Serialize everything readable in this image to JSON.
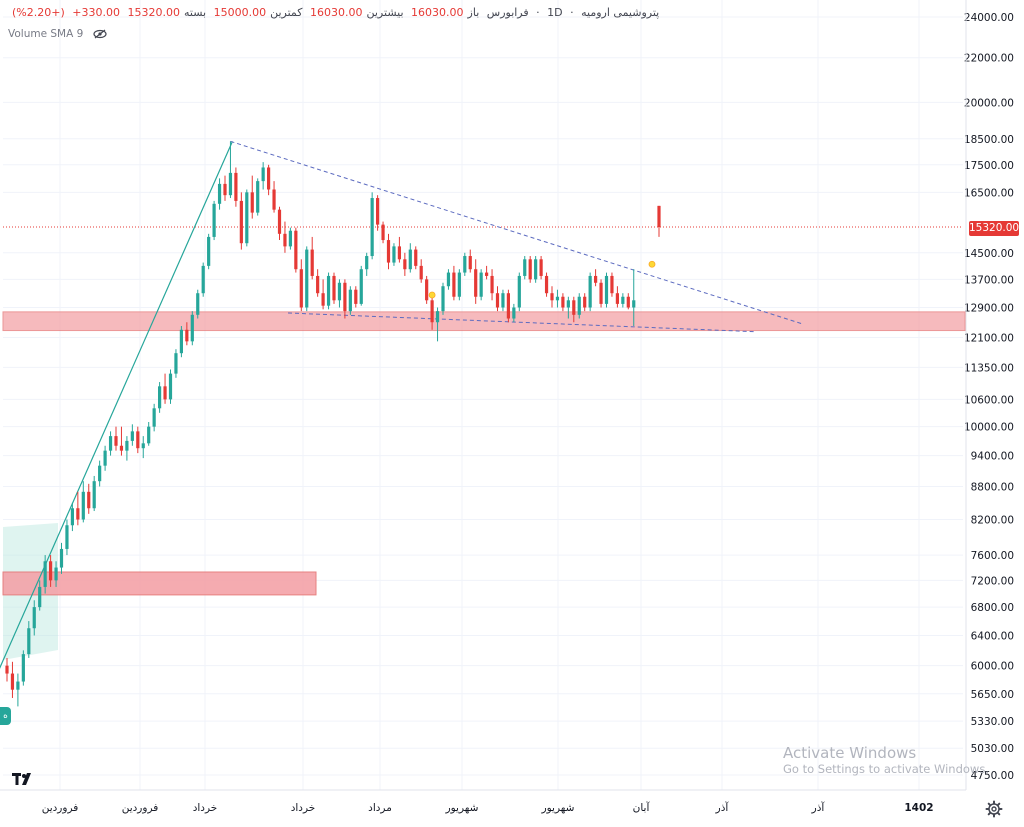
{
  "header": {
    "symbol": "پتروشیمی ارومیه",
    "interval": "1D",
    "exchange": "فرابورس",
    "open_label": "باز",
    "open_value": "16030.00",
    "high_label": "بیشترین",
    "high_value": "16030.00",
    "low_label": "کمترین",
    "low_value": "15000.00",
    "close_label": "بسته",
    "close_value": "15320.00",
    "change": "330.00+",
    "change_pct": "(+2.20%)"
  },
  "volume_indicator": {
    "label": "Volume SMA 9"
  },
  "price_axis": {
    "ticks": [
      "24000.00",
      "22000.00",
      "20000.00",
      "18500.00",
      "17500.00",
      "16500.00",
      "14500.00",
      "13700.00",
      "12900.00",
      "12100.00",
      "11350.00",
      "10600.00",
      "10000.00",
      "9400.00",
      "8800.00",
      "8200.00",
      "7600.00",
      "7200.00",
      "6800.00",
      "6400.00",
      "6000.00",
      "5650.00",
      "5330.00",
      "5030.00",
      "4750.00"
    ],
    "last_price": "15320.00"
  },
  "time_axis": {
    "labels": [
      "فروردین",
      "فروردین",
      "خرداد",
      "خرداد",
      "مرداد",
      "شهریور",
      "شهریور",
      "آبان",
      "آذر",
      "آذر",
      "1402"
    ]
  },
  "watermark": {
    "line1": "Activate Windows",
    "line2": "Go to Settings to activate Windows."
  },
  "colors": {
    "up": "#26a69a",
    "down": "#e53935",
    "zone": "#f4a3a8",
    "trend": "#26a69a",
    "dashed": "#5c6bc0",
    "grid": "#f0f3fa"
  },
  "chart_data": {
    "type": "candlestick",
    "scale": "log",
    "ylim": [
      4700,
      25000
    ],
    "candles": [
      {
        "o": 6000,
        "h": 6100,
        "l": 5800,
        "c": 5900
      },
      {
        "o": 5900,
        "h": 6050,
        "l": 5600,
        "c": 5700
      },
      {
        "o": 5700,
        "h": 5900,
        "l": 5500,
        "c": 5800
      },
      {
        "o": 5800,
        "h": 6200,
        "l": 5750,
        "c": 6150
      },
      {
        "o": 6150,
        "h": 6600,
        "l": 6100,
        "c": 6500
      },
      {
        "o": 6500,
        "h": 6900,
        "l": 6400,
        "c": 6800
      },
      {
        "o": 6800,
        "h": 7200,
        "l": 6750,
        "c": 7100
      },
      {
        "o": 7100,
        "h": 7600,
        "l": 7000,
        "c": 7500
      },
      {
        "o": 7500,
        "h": 7600,
        "l": 7100,
        "c": 7200
      },
      {
        "o": 7200,
        "h": 7500,
        "l": 7100,
        "c": 7400
      },
      {
        "o": 7400,
        "h": 7800,
        "l": 7300,
        "c": 7700
      },
      {
        "o": 7700,
        "h": 8200,
        "l": 7600,
        "c": 8100
      },
      {
        "o": 8100,
        "h": 8500,
        "l": 8000,
        "c": 8400
      },
      {
        "o": 8400,
        "h": 8700,
        "l": 8100,
        "c": 8200
      },
      {
        "o": 8200,
        "h": 8900,
        "l": 8150,
        "c": 8700
      },
      {
        "o": 8700,
        "h": 8850,
        "l": 8300,
        "c": 8400
      },
      {
        "o": 8400,
        "h": 9000,
        "l": 8350,
        "c": 8900
      },
      {
        "o": 8900,
        "h": 9300,
        "l": 8800,
        "c": 9200
      },
      {
        "o": 9200,
        "h": 9600,
        "l": 9100,
        "c": 9500
      },
      {
        "o": 9500,
        "h": 9900,
        "l": 9400,
        "c": 9800
      },
      {
        "o": 9800,
        "h": 10000,
        "l": 9500,
        "c": 9600
      },
      {
        "o": 9600,
        "h": 10000,
        "l": 9400,
        "c": 9500
      },
      {
        "o": 9500,
        "h": 9800,
        "l": 9300,
        "c": 9700
      },
      {
        "o": 9700,
        "h": 10050,
        "l": 9600,
        "c": 9900
      },
      {
        "o": 9900,
        "h": 10000,
        "l": 9450,
        "c": 9550
      },
      {
        "o": 9550,
        "h": 9800,
        "l": 9350,
        "c": 9650
      },
      {
        "o": 9650,
        "h": 10100,
        "l": 9600,
        "c": 10000
      },
      {
        "o": 10000,
        "h": 10500,
        "l": 9900,
        "c": 10400
      },
      {
        "o": 10400,
        "h": 11000,
        "l": 10300,
        "c": 10900
      },
      {
        "o": 10900,
        "h": 11200,
        "l": 10500,
        "c": 10600
      },
      {
        "o": 10600,
        "h": 11300,
        "l": 10500,
        "c": 11200
      },
      {
        "o": 11200,
        "h": 11800,
        "l": 11100,
        "c": 11700
      },
      {
        "o": 11700,
        "h": 12400,
        "l": 11600,
        "c": 12300
      },
      {
        "o": 12300,
        "h": 12500,
        "l": 11900,
        "c": 12000
      },
      {
        "o": 12000,
        "h": 12800,
        "l": 11900,
        "c": 12700
      },
      {
        "o": 12700,
        "h": 13400,
        "l": 12600,
        "c": 13300
      },
      {
        "o": 13300,
        "h": 14200,
        "l": 13200,
        "c": 14100
      },
      {
        "o": 14100,
        "h": 15100,
        "l": 14000,
        "c": 15000
      },
      {
        "o": 15000,
        "h": 16200,
        "l": 14900,
        "c": 16100
      },
      {
        "o": 16100,
        "h": 17000,
        "l": 15900,
        "c": 16800
      },
      {
        "o": 16800,
        "h": 17100,
        "l": 16200,
        "c": 16400
      },
      {
        "o": 16400,
        "h": 18400,
        "l": 16300,
        "c": 17200
      },
      {
        "o": 17200,
        "h": 17400,
        "l": 16000,
        "c": 16200
      },
      {
        "o": 16200,
        "h": 16500,
        "l": 14600,
        "c": 14800
      },
      {
        "o": 14800,
        "h": 16600,
        "l": 14700,
        "c": 16500
      },
      {
        "o": 16500,
        "h": 17100,
        "l": 15600,
        "c": 15800
      },
      {
        "o": 15800,
        "h": 17000,
        "l": 15700,
        "c": 16900
      },
      {
        "o": 16900,
        "h": 17600,
        "l": 16600,
        "c": 17400
      },
      {
        "o": 17400,
        "h": 17500,
        "l": 16400,
        "c": 16600
      },
      {
        "o": 16600,
        "h": 16900,
        "l": 15800,
        "c": 15900
      },
      {
        "o": 15900,
        "h": 16000,
        "l": 14900,
        "c": 15100
      },
      {
        "o": 15100,
        "h": 15500,
        "l": 14500,
        "c": 14700
      },
      {
        "o": 14700,
        "h": 15300,
        "l": 14600,
        "c": 15200
      },
      {
        "o": 15200,
        "h": 15300,
        "l": 13900,
        "c": 14000
      },
      {
        "o": 14000,
        "h": 14300,
        "l": 12800,
        "c": 12900
      },
      {
        "o": 12900,
        "h": 14700,
        "l": 12800,
        "c": 14600
      },
      {
        "o": 14600,
        "h": 15000,
        "l": 13700,
        "c": 13800
      },
      {
        "o": 13800,
        "h": 14000,
        "l": 13200,
        "c": 13300
      },
      {
        "o": 13300,
        "h": 13700,
        "l": 12850,
        "c": 12950
      },
      {
        "o": 12950,
        "h": 13900,
        "l": 12850,
        "c": 13800
      },
      {
        "o": 13800,
        "h": 13900,
        "l": 13000,
        "c": 13100
      },
      {
        "o": 13100,
        "h": 13700,
        "l": 12900,
        "c": 13600
      },
      {
        "o": 13600,
        "h": 13700,
        "l": 12600,
        "c": 12800
      },
      {
        "o": 12800,
        "h": 13500,
        "l": 12700,
        "c": 13400
      },
      {
        "o": 13400,
        "h": 13500,
        "l": 12900,
        "c": 13000
      },
      {
        "o": 13000,
        "h": 14100,
        "l": 12950,
        "c": 14000
      },
      {
        "o": 14000,
        "h": 14500,
        "l": 13800,
        "c": 14400
      },
      {
        "o": 14400,
        "h": 16500,
        "l": 14300,
        "c": 16300
      },
      {
        "o": 16300,
        "h": 16400,
        "l": 15200,
        "c": 15400
      },
      {
        "o": 15400,
        "h": 15500,
        "l": 14800,
        "c": 14900
      },
      {
        "o": 14900,
        "h": 15100,
        "l": 14000,
        "c": 14200
      },
      {
        "o": 14200,
        "h": 14800,
        "l": 14100,
        "c": 14700
      },
      {
        "o": 14700,
        "h": 15000,
        "l": 14200,
        "c": 14300
      },
      {
        "o": 14300,
        "h": 14500,
        "l": 13800,
        "c": 14000
      },
      {
        "o": 14000,
        "h": 14800,
        "l": 13900,
        "c": 14600
      },
      {
        "o": 14600,
        "h": 14700,
        "l": 14000,
        "c": 14100
      },
      {
        "o": 14100,
        "h": 14300,
        "l": 13600,
        "c": 13700
      },
      {
        "o": 13700,
        "h": 13800,
        "l": 13000,
        "c": 13100
      },
      {
        "o": 13100,
        "h": 13300,
        "l": 12300,
        "c": 12500
      },
      {
        "o": 12500,
        "h": 12900,
        "l": 12000,
        "c": 12800
      },
      {
        "o": 12800,
        "h": 13600,
        "l": 12700,
        "c": 13500
      },
      {
        "o": 13500,
        "h": 14000,
        "l": 13400,
        "c": 13900
      },
      {
        "o": 13900,
        "h": 14100,
        "l": 13100,
        "c": 13200
      },
      {
        "o": 13200,
        "h": 14000,
        "l": 13100,
        "c": 13900
      },
      {
        "o": 13900,
        "h": 14500,
        "l": 13800,
        "c": 14400
      },
      {
        "o": 14400,
        "h": 14600,
        "l": 13900,
        "c": 14000
      },
      {
        "o": 14000,
        "h": 14300,
        "l": 13000,
        "c": 13200
      },
      {
        "o": 13200,
        "h": 14000,
        "l": 13100,
        "c": 13900
      },
      {
        "o": 13900,
        "h": 14100,
        "l": 13700,
        "c": 13800
      },
      {
        "o": 13800,
        "h": 14000,
        "l": 13100,
        "c": 13300
      },
      {
        "o": 13300,
        "h": 13500,
        "l": 12800,
        "c": 12900
      },
      {
        "o": 12900,
        "h": 13400,
        "l": 12800,
        "c": 13300
      },
      {
        "o": 13300,
        "h": 13400,
        "l": 12500,
        "c": 12600
      },
      {
        "o": 12600,
        "h": 13000,
        "l": 12500,
        "c": 12900
      },
      {
        "o": 12900,
        "h": 13900,
        "l": 12800,
        "c": 13800
      },
      {
        "o": 13800,
        "h": 14400,
        "l": 13700,
        "c": 14300
      },
      {
        "o": 14300,
        "h": 14400,
        "l": 13600,
        "c": 13700
      },
      {
        "o": 13700,
        "h": 14400,
        "l": 13600,
        "c": 14300
      },
      {
        "o": 14300,
        "h": 14400,
        "l": 13700,
        "c": 13800
      },
      {
        "o": 13800,
        "h": 13900,
        "l": 13200,
        "c": 13300
      },
      {
        "o": 13300,
        "h": 13500,
        "l": 12900,
        "c": 13100
      },
      {
        "o": 13100,
        "h": 13400,
        "l": 12900,
        "c": 13200
      },
      {
        "o": 13200,
        "h": 13300,
        "l": 12800,
        "c": 12900
      },
      {
        "o": 12900,
        "h": 13200,
        "l": 12600,
        "c": 13100
      },
      {
        "o": 13100,
        "h": 13200,
        "l": 12500,
        "c": 12700
      },
      {
        "o": 12700,
        "h": 13300,
        "l": 12600,
        "c": 13200
      },
      {
        "o": 13200,
        "h": 13300,
        "l": 12800,
        "c": 12900
      },
      {
        "o": 12900,
        "h": 13900,
        "l": 12800,
        "c": 13800
      },
      {
        "o": 13800,
        "h": 14000,
        "l": 13500,
        "c": 13600
      },
      {
        "o": 13600,
        "h": 13700,
        "l": 12900,
        "c": 13000
      },
      {
        "o": 13000,
        "h": 13900,
        "l": 12900,
        "c": 13800
      },
      {
        "o": 13800,
        "h": 13900,
        "l": 13200,
        "c": 13300
      },
      {
        "o": 13300,
        "h": 13500,
        "l": 12900,
        "c": 13000
      },
      {
        "o": 13000,
        "h": 13300,
        "l": 12900,
        "c": 13200
      },
      {
        "o": 13200,
        "h": 13300,
        "l": 12850,
        "c": 12900
      },
      {
        "o": 12900,
        "h": 14000,
        "l": 12400,
        "c": 13100
      },
      {
        "o": 16030,
        "h": 16030,
        "l": 15000,
        "c": 15320
      }
    ],
    "zones": [
      {
        "from": 12280,
        "to": 12780
      },
      {
        "from": 6980,
        "to": 7330
      }
    ],
    "trendline": {
      "from": {
        "candle": 0,
        "price": 5700
      },
      "to": {
        "candle": 41,
        "price": 18400
      }
    },
    "resistance_line": {
      "from": {
        "candle": 41,
        "price": 18400
      },
      "to": {
        "candle": 145,
        "price": 12450
      }
    },
    "support_line": {
      "from": {
        "candle": 52,
        "price": 12750
      },
      "to": {
        "candle": 136,
        "price": 12250
      }
    },
    "markers": [
      {
        "candle": 78,
        "price": 13250
      },
      {
        "candle": 118,
        "price": 14150
      }
    ]
  }
}
